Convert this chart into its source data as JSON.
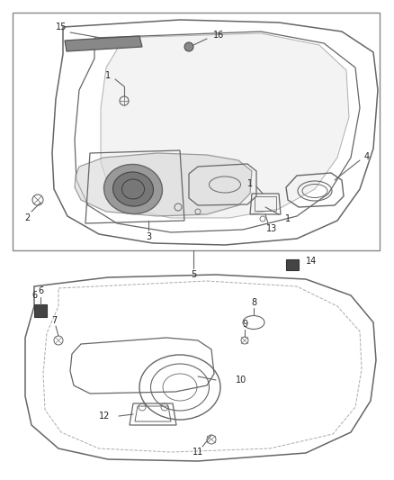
{
  "bg_color": "#ffffff",
  "line_color": "#666666",
  "text_color": "#222222",
  "fig_width": 4.38,
  "fig_height": 5.33,
  "dpi": 100
}
